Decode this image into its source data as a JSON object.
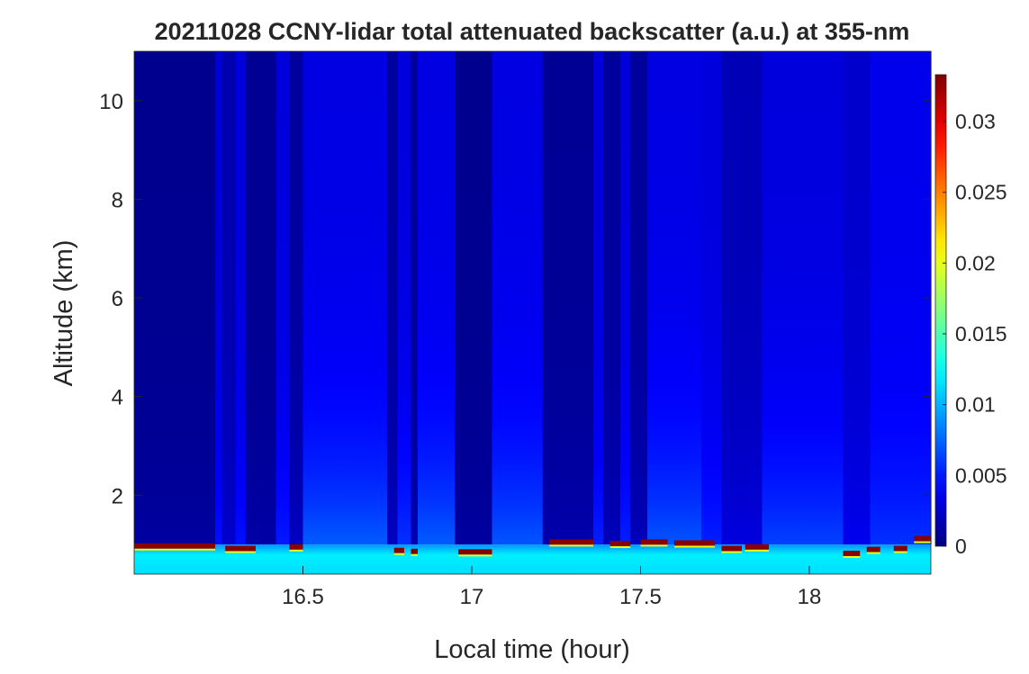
{
  "chart_data": {
    "type": "heatmap",
    "title": "20211028 CCNY-lidar total attenuated backscatter (a.u.) at 355-nm",
    "xlabel": "Local time (hour)",
    "ylabel": "Altitude (km)",
    "xlim": [
      16.0,
      18.36
    ],
    "ylim": [
      0.4,
      11.0
    ],
    "xticks": [
      16.5,
      17,
      17.5,
      18
    ],
    "xtick_labels": [
      "16.5",
      "17",
      "17.5",
      "18"
    ],
    "yticks": [
      2,
      4,
      6,
      8,
      10
    ],
    "ytick_labels": [
      "2",
      "4",
      "6",
      "8",
      "10"
    ],
    "colormap": "jet",
    "clim": [
      0,
      0.0333
    ],
    "colorbar_ticks": [
      0,
      0.005,
      0.01,
      0.015,
      0.02,
      0.025,
      0.03
    ],
    "colorbar_tick_labels": [
      "0",
      "0.005",
      "0.01",
      "0.015",
      "0.02",
      "0.025",
      "0.03"
    ],
    "near_surface_layer": {
      "top_km": 0.95,
      "value": 0.012
    },
    "columns": [
      {
        "t0": 16.0,
        "t1": 16.24,
        "v_low": 0.001,
        "v_top": 0.0005
      },
      {
        "t0": 16.24,
        "t1": 16.26,
        "v_low": 0.0045,
        "v_top": 0.003
      },
      {
        "t0": 16.26,
        "t1": 16.3,
        "v_low": 0.0025,
        "v_top": 0.0015
      },
      {
        "t0": 16.3,
        "t1": 16.33,
        "v_low": 0.0045,
        "v_top": 0.003
      },
      {
        "t0": 16.33,
        "t1": 16.42,
        "v_low": 0.0012,
        "v_top": 0.0006
      },
      {
        "t0": 16.42,
        "t1": 16.46,
        "v_low": 0.0048,
        "v_top": 0.003
      },
      {
        "t0": 16.46,
        "t1": 16.5,
        "v_low": 0.002,
        "v_top": 0.001
      },
      {
        "t0": 16.5,
        "t1": 16.75,
        "v_low": 0.0068,
        "v_top": 0.0032
      },
      {
        "t0": 16.75,
        "t1": 16.78,
        "v_low": 0.002,
        "v_top": 0.001
      },
      {
        "t0": 16.78,
        "t1": 16.82,
        "v_low": 0.0055,
        "v_top": 0.003
      },
      {
        "t0": 16.82,
        "t1": 16.84,
        "v_low": 0.0015,
        "v_top": 0.0008
      },
      {
        "t0": 16.84,
        "t1": 16.95,
        "v_low": 0.0068,
        "v_top": 0.0032
      },
      {
        "t0": 16.95,
        "t1": 17.06,
        "v_low": 0.001,
        "v_top": 0.0005
      },
      {
        "t0": 17.06,
        "t1": 17.21,
        "v_low": 0.0066,
        "v_top": 0.0032
      },
      {
        "t0": 17.21,
        "t1": 17.36,
        "v_low": 0.0014,
        "v_top": 0.0007
      },
      {
        "t0": 17.36,
        "t1": 17.39,
        "v_low": 0.005,
        "v_top": 0.003
      },
      {
        "t0": 17.39,
        "t1": 17.44,
        "v_low": 0.0018,
        "v_top": 0.0009
      },
      {
        "t0": 17.44,
        "t1": 17.47,
        "v_low": 0.005,
        "v_top": 0.003
      },
      {
        "t0": 17.47,
        "t1": 17.52,
        "v_low": 0.0018,
        "v_top": 0.0009
      },
      {
        "t0": 17.52,
        "t1": 17.68,
        "v_low": 0.0066,
        "v_top": 0.0032
      },
      {
        "t0": 17.68,
        "t1": 17.74,
        "v_low": 0.005,
        "v_top": 0.003
      },
      {
        "t0": 17.74,
        "t1": 17.86,
        "v_low": 0.003,
        "v_top": 0.0018
      },
      {
        "t0": 17.86,
        "t1": 18.1,
        "v_low": 0.006,
        "v_top": 0.003
      },
      {
        "t0": 18.1,
        "t1": 18.18,
        "v_low": 0.0035,
        "v_top": 0.0025
      },
      {
        "t0": 18.18,
        "t1": 18.36,
        "v_low": 0.0055,
        "v_top": 0.0035
      }
    ],
    "cloud_layers": [
      {
        "t0": 16.0,
        "t1": 16.24,
        "z": 0.97,
        "value": 0.033
      },
      {
        "t0": 16.27,
        "t1": 16.36,
        "z": 0.92,
        "value": 0.033
      },
      {
        "t0": 16.46,
        "t1": 16.5,
        "z": 0.95,
        "value": 0.033
      },
      {
        "t0": 16.77,
        "t1": 16.8,
        "z": 0.88,
        "value": 0.033
      },
      {
        "t0": 16.82,
        "t1": 16.84,
        "z": 0.86,
        "value": 0.033
      },
      {
        "t0": 16.96,
        "t1": 17.06,
        "z": 0.85,
        "value": 0.033
      },
      {
        "t0": 17.23,
        "t1": 17.36,
        "z": 1.05,
        "value": 0.033
      },
      {
        "t0": 17.41,
        "t1": 17.47,
        "z": 1.02,
        "value": 0.033
      },
      {
        "t0": 17.5,
        "t1": 17.58,
        "z": 1.05,
        "value": 0.033
      },
      {
        "t0": 17.6,
        "t1": 17.72,
        "z": 1.03,
        "value": 0.033
      },
      {
        "t0": 17.74,
        "t1": 17.8,
        "z": 0.92,
        "value": 0.033
      },
      {
        "t0": 17.81,
        "t1": 17.88,
        "z": 0.95,
        "value": 0.033
      },
      {
        "t0": 18.1,
        "t1": 18.15,
        "z": 0.82,
        "value": 0.033
      },
      {
        "t0": 18.17,
        "t1": 18.21,
        "z": 0.9,
        "value": 0.033
      },
      {
        "t0": 18.25,
        "t1": 18.29,
        "z": 0.92,
        "value": 0.033
      },
      {
        "t0": 18.31,
        "t1": 18.36,
        "z": 1.12,
        "value": 0.033
      }
    ]
  }
}
